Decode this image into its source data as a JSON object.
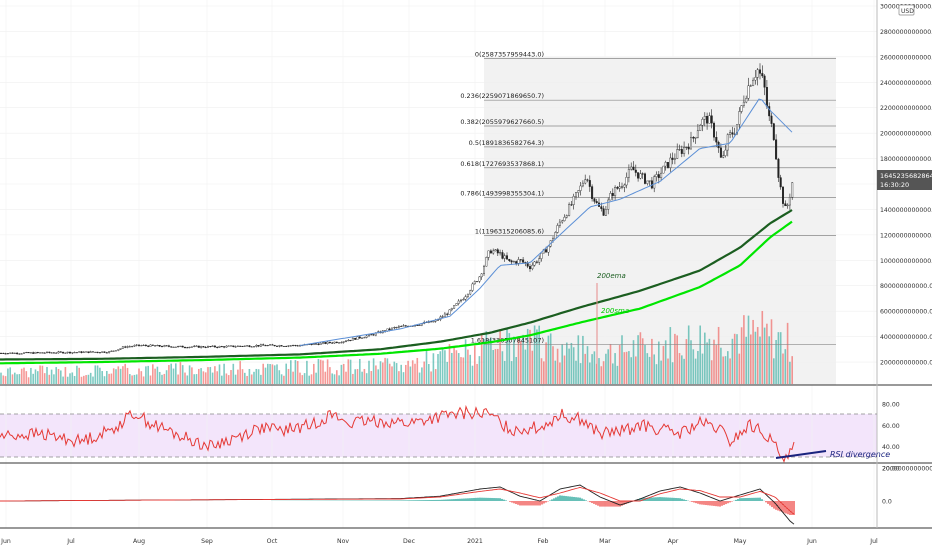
{
  "currency_badge": "USD",
  "price_axis": {
    "ticks": [
      "3000000000000.0",
      "2800000000000.0",
      "2600000000000.0",
      "2400000000000.0",
      "2200000000000.0",
      "2000000000000.0",
      "1800000000000.0",
      "1600000000000.0",
      "1400000000000.0",
      "1200000000000.0",
      "1000000000000.0",
      "800000000000.0",
      "600000000000.0",
      "400000000000.0",
      "200000000000.0"
    ],
    "current_price": "1645235682864.4",
    "countdown": "16:30:20"
  },
  "fib_levels": [
    {
      "label": "0(2587357959443.0)",
      "value": 2587357959443.0
    },
    {
      "label": "0.236(2259071869650.7)",
      "value": 2259071869650.7
    },
    {
      "label": "0.382(2055979627660.5)",
      "value": 2055979627660.5
    },
    {
      "label": "0.5(1891836582764.3)",
      "value": 1891836582764.3
    },
    {
      "label": "0.618(1727693537868.1)",
      "value": 1727693537868.1
    },
    {
      "label": "0.786(1493998355304.1)",
      "value": 1493998355304.1
    },
    {
      "label": "1(1196315206085.6)",
      "value": 1196315206085.6
    },
    {
      "label": "1.618(336507845107)",
      "value": 336507845107.0
    }
  ],
  "annotations": {
    "ema200": "200ema",
    "sma200": "200sma",
    "rsi_divergence": "RSI divergence"
  },
  "rsi_axis": {
    "ticks": [
      "80.00",
      "60.00",
      "40.00",
      "20.00"
    ]
  },
  "macd_axis": {
    "ticks": [
      "20000000000000.0",
      "0.0"
    ]
  },
  "time_axis": {
    "ticks": [
      "Jun",
      "Jul",
      "Aug",
      "Sep",
      "Oct",
      "Nov",
      "Dec",
      "2021",
      "Feb",
      "Mar",
      "Apr",
      "May",
      "Jun",
      "Jul"
    ]
  },
  "colors": {
    "up": "#26a69a",
    "down": "#ef5350",
    "candle_body": "#222222",
    "ema200": "#1b5e20",
    "sma200": "#00e600",
    "ema_short": "#5b8fd6",
    "rsi": "#e53935",
    "rsi_band": "#e9d5f7",
    "macd": "#222222",
    "macd_signal": "#e53935",
    "volume_up": "#26a69a",
    "volume_down": "#ef5350",
    "divergence_line": "#1a237e"
  },
  "chart_data": [
    {
      "type": "line",
      "title": "",
      "x": [
        "Jun",
        "Jul",
        "Aug",
        "Sep",
        "Oct",
        "Nov",
        "Dec",
        "2021",
        "Feb",
        "Mar",
        "Apr",
        "May"
      ],
      "series": [
        {
          "values": [
            250,
            250,
            300,
            330,
            330,
            350,
            520,
            800,
            1300,
            1700,
            2200,
            2500
          ]
        },
        {
          "name": "200ema",
          "values": [
            200,
            210,
            220,
            240,
            250,
            280,
            330,
            420,
            620,
            840,
            1080,
            1350
          ]
        },
        {
          "name": "200sma",
          "values": [
            190,
            200,
            210,
            220,
            230,
            250,
            300,
            380,
            520,
            720,
            960,
            1240
          ]
        }
      ],
      "fib_retracement": [
        2587357959443.0,
        2259071869650.7,
        2055979627660.5,
        1891836582764.3,
        1727693537868.1,
        1493998355304.1,
        1196315206085.6,
        336507845107.0
      ],
      "ylim": [
        0,
        3000000000000
      ],
      "grid": true
    },
    {
      "type": "line",
      "x": [
        "Jun",
        "Jul",
        "Aug",
        "Sep",
        "Oct",
        "Nov",
        "Dec",
        "2021",
        "Feb",
        "Mar",
        "Apr",
        "May"
      ],
      "series": [
        {
          "values": [
            50,
            55,
            70,
            50,
            55,
            60,
            70,
            75,
            65,
            60,
            65,
            40
          ]
        }
      ],
      "ylim": [
        20,
        90
      ]
    },
    {
      "type": "bar",
      "x": [
        "Jun",
        "Jul",
        "Aug",
        "Sep",
        "Oct",
        "Nov",
        "Dec",
        "2021",
        "Feb",
        "Mar",
        "Apr",
        "May"
      ],
      "series": [
        {
          "values": [
            0,
            0,
            0,
            0,
            0,
            0,
            0,
            1,
            3,
            1,
            2,
            -6
          ]
        }
      ]
    }
  ]
}
